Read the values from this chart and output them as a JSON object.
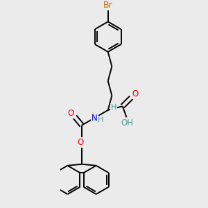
{
  "bg_color": "#ebebeb",
  "atom_colors": {
    "C": "#000000",
    "H": "#4a9999",
    "O": "#ff0000",
    "N": "#0000cc",
    "Br": "#cc6600"
  },
  "bond_color": "#000000",
  "bond_width": 1.4,
  "font_size": 8.5
}
